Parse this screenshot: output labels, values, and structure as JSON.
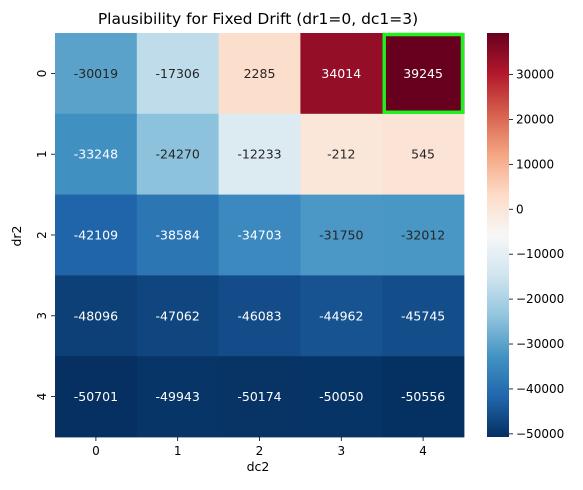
{
  "chart_data": {
    "type": "heatmap",
    "title": "Plausibility for Fixed Drift (dr1=0, dc1=3)",
    "xlabel": "dc2",
    "ylabel": "dr2",
    "x_categories": [
      "0",
      "1",
      "2",
      "3",
      "4"
    ],
    "y_categories": [
      "0",
      "1",
      "2",
      "3",
      "4"
    ],
    "values": [
      [
        -30019,
        -17306,
        2285,
        34014,
        39245
      ],
      [
        -33248,
        -24270,
        -12233,
        -212,
        545
      ],
      [
        -42109,
        -38584,
        -34703,
        -31750,
        -32012
      ],
      [
        -48096,
        -47062,
        -46083,
        -44962,
        -45745
      ],
      [
        -50701,
        -49943,
        -50174,
        -50050,
        -50556
      ]
    ],
    "colormap": "RdBu_r",
    "color_range": [
      -50701,
      39245
    ],
    "colorbar_ticks": [
      30000,
      20000,
      10000,
      0,
      -10000,
      -20000,
      -30000,
      -40000,
      -50000
    ],
    "highlight": {
      "row": 0,
      "col": 4,
      "color": "#22ee22"
    }
  }
}
